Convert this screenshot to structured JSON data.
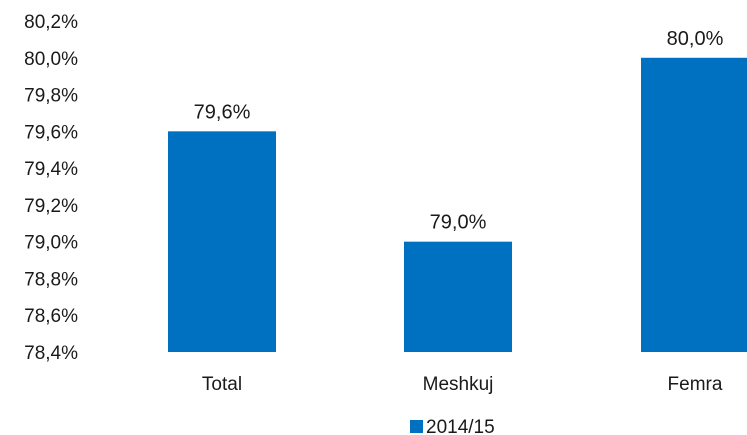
{
  "chart_data": {
    "type": "bar",
    "categories": [
      "Total",
      "Meshkuj",
      "Femra"
    ],
    "series": [
      {
        "name": "2014/15",
        "values": [
          79.6,
          79.0,
          80.0
        ],
        "data_labels": [
          "79,6%",
          "79,0%",
          "80,0%"
        ],
        "color": "#0070c0"
      }
    ],
    "ylim": [
      78.4,
      80.2
    ],
    "yticks": [
      78.4,
      78.6,
      78.8,
      79.0,
      79.2,
      79.4,
      79.6,
      79.8,
      80.0,
      80.2
    ],
    "ytick_labels": [
      "78,4%",
      "78,6%",
      "78,8%",
      "79,0%",
      "79,2%",
      "79,4%",
      "79,6%",
      "79,8%",
      "80,0%",
      "80,2%"
    ],
    "grid": false,
    "legend_position": "bottom"
  }
}
